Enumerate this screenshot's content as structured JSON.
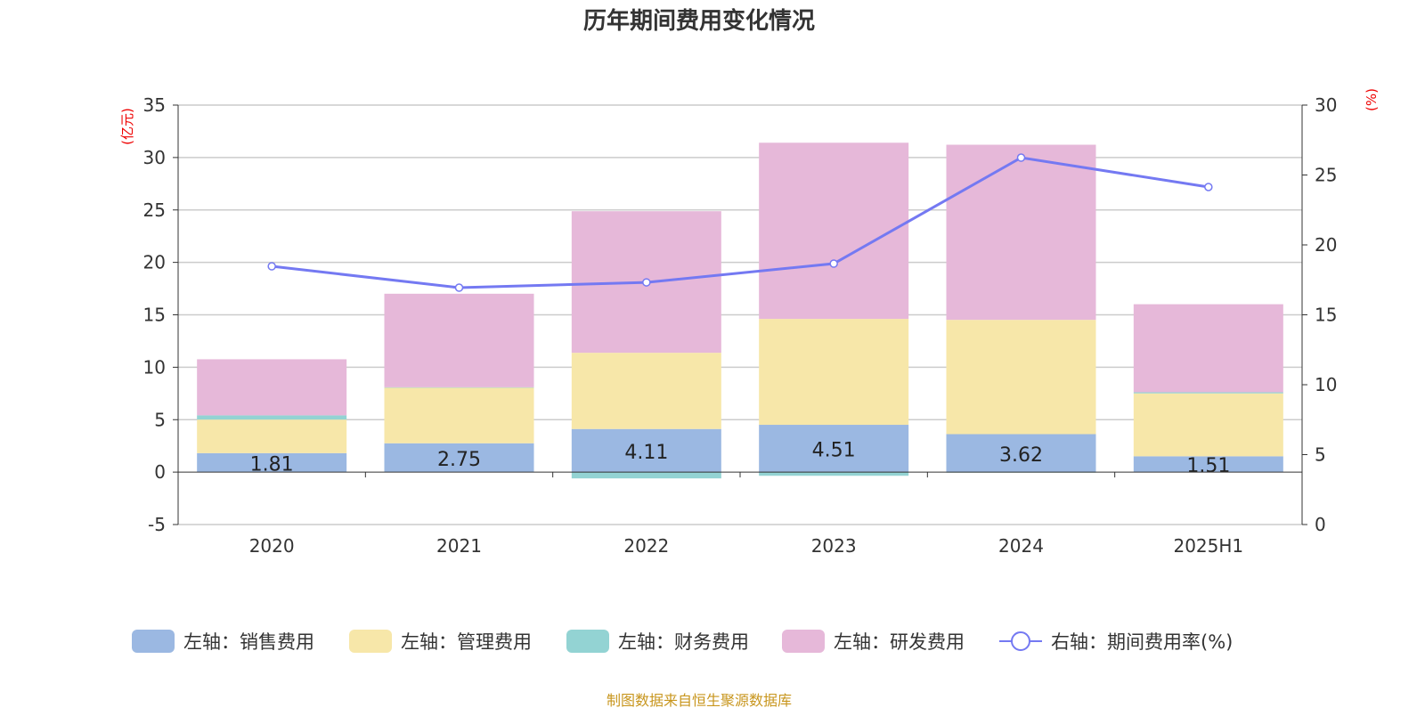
{
  "chart_data": {
    "type": "bar",
    "title": "历年期间费用变化情况",
    "categories": [
      "2020",
      "2021",
      "2022",
      "2023",
      "2024",
      "2025H1"
    ],
    "left_axis": {
      "unit": "(亿元)",
      "ylim": [
        -5,
        35
      ],
      "ticks": [
        -5,
        0,
        5,
        10,
        15,
        20,
        25,
        30,
        35
      ]
    },
    "right_axis": {
      "unit": "(%)",
      "ylim": [
        0,
        30
      ],
      "ticks": [
        0,
        5,
        10,
        15,
        20,
        25,
        30
      ]
    },
    "grid": true,
    "legend_position": "bottom",
    "series": [
      {
        "name": "左轴：销售费用",
        "type": "bar",
        "stack": true,
        "color": "#9BB8E2",
        "values": [
          1.81,
          2.75,
          4.11,
          4.51,
          3.62,
          1.51
        ],
        "labels": [
          "1.81",
          "2.75",
          "4.11",
          "4.51",
          "3.62",
          "1.51"
        ]
      },
      {
        "name": "左轴：管理费用",
        "type": "bar",
        "stack": true,
        "color": "#F7E7A9",
        "values": [
          3.2,
          5.32,
          7.27,
          10.1,
          10.9,
          6.0
        ]
      },
      {
        "name": "左轴：财务费用",
        "type": "bar",
        "stack": true,
        "color": "#93D3D3",
        "values": [
          0.4,
          0.02,
          -0.6,
          -0.35,
          -0.05,
          0.1
        ]
      },
      {
        "name": "左轴：研发费用",
        "type": "bar",
        "stack": true,
        "color": "#E6B8D9",
        "values": [
          5.35,
          8.92,
          13.5,
          16.8,
          16.7,
          8.4
        ]
      },
      {
        "name": "右轴：期间费用率(%)",
        "type": "line",
        "axis": "right",
        "color": "#7479F2",
        "values": [
          18.47,
          16.94,
          17.32,
          18.66,
          26.24,
          24.14
        ]
      }
    ]
  },
  "footer": {
    "source": "制图数据来自恒生聚源数据库"
  }
}
